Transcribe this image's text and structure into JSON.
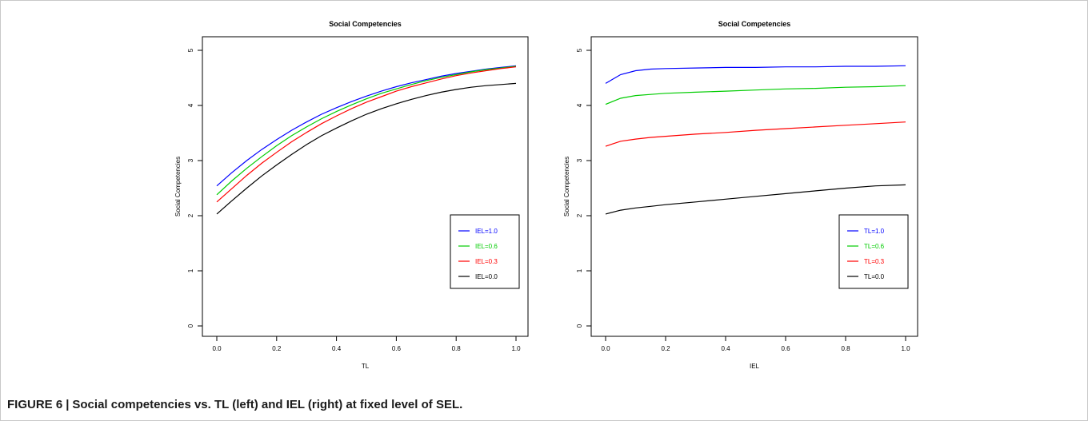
{
  "figure": {
    "label": "FIGURE 6",
    "separator": "|",
    "caption": "Social competencies vs. TL (left) and IEL (right) at fixed level of SEL."
  },
  "chart_data": [
    {
      "type": "line",
      "title": "Social Competencies",
      "xlabel": "TL",
      "ylabel": "Social Competencies",
      "xlim": [
        0,
        1
      ],
      "ylim": [
        0,
        5
      ],
      "x_ticks": [
        "0.0",
        "0.2",
        "0.4",
        "0.6",
        "0.8",
        "1.0"
      ],
      "y_ticks": [
        "0",
        "1",
        "2",
        "3",
        "4",
        "5"
      ],
      "grid": false,
      "legend_position": "bottom-right",
      "x": [
        0,
        0.05,
        0.1,
        0.15,
        0.2,
        0.25,
        0.3,
        0.35,
        0.4,
        0.45,
        0.5,
        0.55,
        0.6,
        0.65,
        0.7,
        0.75,
        0.8,
        0.85,
        0.9,
        0.95,
        1.0
      ],
      "series": [
        {
          "name": "IEL=1.0",
          "color": "#0000ff",
          "values": [
            2.54,
            2.78,
            3.0,
            3.2,
            3.38,
            3.55,
            3.7,
            3.84,
            3.96,
            4.07,
            4.17,
            4.26,
            4.34,
            4.41,
            4.47,
            4.53,
            4.58,
            4.62,
            4.66,
            4.69,
            4.72
          ]
        },
        {
          "name": "IEL=0.6",
          "color": "#00cc00",
          "values": [
            2.38,
            2.63,
            2.86,
            3.07,
            3.27,
            3.45,
            3.61,
            3.76,
            3.89,
            4.01,
            4.12,
            4.22,
            4.3,
            4.38,
            4.45,
            4.51,
            4.56,
            4.61,
            4.65,
            4.68,
            4.71
          ]
        },
        {
          "name": "IEL=0.3",
          "color": "#ff0000",
          "values": [
            2.25,
            2.49,
            2.73,
            2.95,
            3.15,
            3.34,
            3.51,
            3.67,
            3.81,
            3.94,
            4.06,
            4.16,
            4.26,
            4.34,
            4.41,
            4.48,
            4.54,
            4.59,
            4.63,
            4.67,
            4.7
          ]
        },
        {
          "name": "IEL=0.0",
          "color": "#000000",
          "values": [
            2.03,
            2.27,
            2.5,
            2.72,
            2.92,
            3.11,
            3.29,
            3.45,
            3.59,
            3.72,
            3.84,
            3.94,
            4.03,
            4.11,
            4.18,
            4.24,
            4.29,
            4.33,
            4.36,
            4.38,
            4.4
          ]
        }
      ]
    },
    {
      "type": "line",
      "title": "Social Competencies",
      "xlabel": "IEL",
      "ylabel": "Social Competencies",
      "xlim": [
        0,
        1
      ],
      "ylim": [
        0,
        5
      ],
      "x_ticks": [
        "0.0",
        "0.2",
        "0.4",
        "0.6",
        "0.8",
        "1.0"
      ],
      "y_ticks": [
        "0",
        "1",
        "2",
        "3",
        "4",
        "5"
      ],
      "grid": false,
      "legend_position": "bottom-right",
      "x": [
        0,
        0.05,
        0.1,
        0.15,
        0.2,
        0.3,
        0.4,
        0.5,
        0.6,
        0.7,
        0.8,
        0.9,
        1.0
      ],
      "series": [
        {
          "name": "TL=1.0",
          "color": "#0000ff",
          "values": [
            4.4,
            4.56,
            4.63,
            4.66,
            4.67,
            4.68,
            4.69,
            4.69,
            4.7,
            4.7,
            4.71,
            4.71,
            4.72
          ]
        },
        {
          "name": "TL=0.6",
          "color": "#00cc00",
          "values": [
            4.02,
            4.13,
            4.18,
            4.2,
            4.22,
            4.24,
            4.26,
            4.28,
            4.3,
            4.31,
            4.33,
            4.34,
            4.36
          ]
        },
        {
          "name": "TL=0.3",
          "color": "#ff0000",
          "values": [
            3.26,
            3.35,
            3.39,
            3.42,
            3.44,
            3.48,
            3.51,
            3.55,
            3.58,
            3.61,
            3.64,
            3.67,
            3.7
          ]
        },
        {
          "name": "TL=0.0",
          "color": "#000000",
          "values": [
            2.03,
            2.1,
            2.14,
            2.17,
            2.2,
            2.25,
            2.3,
            2.35,
            2.4,
            2.45,
            2.5,
            2.54,
            2.56
          ]
        }
      ]
    }
  ]
}
